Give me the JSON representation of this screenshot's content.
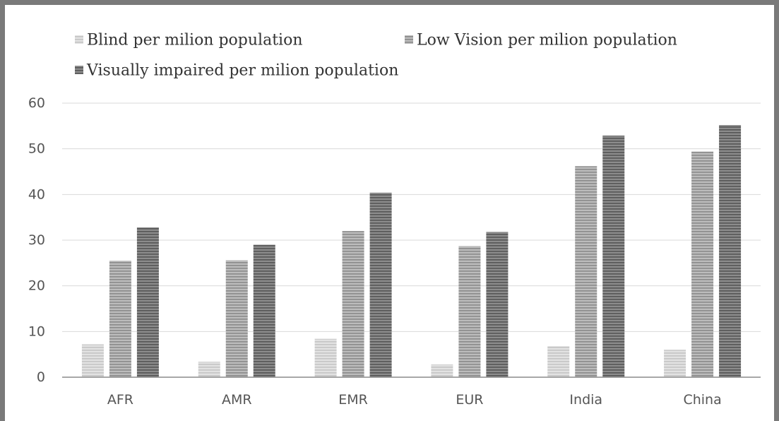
{
  "chart_data": {
    "type": "bar",
    "categories": [
      "AFR",
      "AMR",
      "EMR",
      "EUR",
      "India",
      "China"
    ],
    "series": [
      {
        "name": "Blind per milion population",
        "values": [
          7.2,
          3.4,
          8.4,
          2.8,
          6.8,
          6.0
        ],
        "color": "#e2e2e2",
        "stripe": "#c4c4c4"
      },
      {
        "name": "Low Vision per milion population",
        "values": [
          25.5,
          25.6,
          32.0,
          28.7,
          46.2,
          49.4
        ],
        "color": "#bcbcbc",
        "stripe": "#8a8a8a"
      },
      {
        "name": "Visually impaired per milion population",
        "values": [
          32.8,
          29.0,
          40.4,
          31.8,
          52.9,
          55.2
        ],
        "color": "#8c8c8c",
        "stripe": "#555555"
      }
    ],
    "yticks": [
      "0",
      "10",
      "20",
      "30",
      "40",
      "50",
      "60"
    ],
    "ylim": [
      0,
      60
    ],
    "grid": true,
    "legend_position": "top-left",
    "title": "",
    "xlabel": "",
    "ylabel": ""
  }
}
